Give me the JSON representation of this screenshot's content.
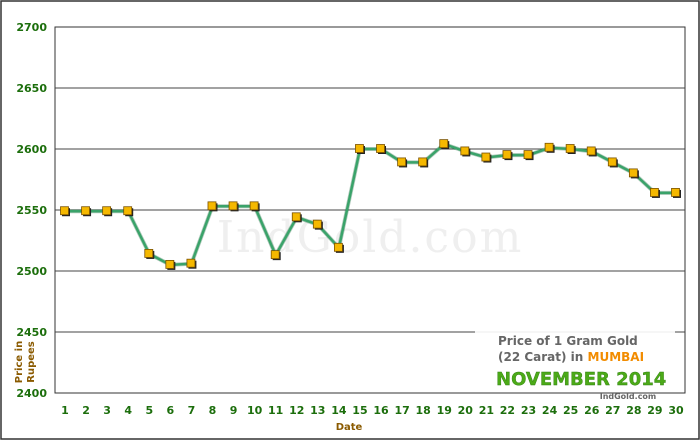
{
  "chart_data": {
    "type": "line",
    "xlabel": "Date",
    "ylabel": "Price in Rupees",
    "ylim": [
      2400,
      2700
    ],
    "yticks": [
      2400,
      2450,
      2500,
      2550,
      2600,
      2650,
      2700
    ],
    "grid": true,
    "x": [
      "1",
      "2",
      "3",
      "4",
      "5",
      "6",
      "7",
      "8",
      "9",
      "10",
      "11",
      "12",
      "13",
      "14",
      "15",
      "16",
      "17",
      "18",
      "19",
      "20",
      "21",
      "22",
      "23",
      "24",
      "25",
      "26",
      "27",
      "28",
      "29",
      "30"
    ],
    "series": [
      {
        "values": [
          2549,
          2549,
          2549,
          2549,
          2514,
          2505,
          2506,
          2553,
          2553,
          2553,
          2513,
          2544,
          2538,
          2519,
          2600,
          2600,
          2589,
          2589,
          2604,
          2598,
          2593,
          2595,
          2595,
          2601,
          2600,
          2598,
          2589,
          2580,
          2564,
          2564
        ]
      }
    ],
    "caption": {
      "line1": "Price of 1 Gram Gold",
      "line2_prefix": "(22 Carat) in ",
      "line2_city": "MUMBAI",
      "month": "NOVEMBER 2014",
      "source": "IndGold.com"
    },
    "watermark": "IndGold.com",
    "colors": {
      "line": "#3aa36a",
      "marker": "#f5b800",
      "axis_text": "#1c6e0c",
      "xlabel": "#8a5a00",
      "ylabel": "#8a5a00",
      "month_text": "#4caa18",
      "city_text": "#f28c00",
      "caption_text": "#666666"
    }
  }
}
